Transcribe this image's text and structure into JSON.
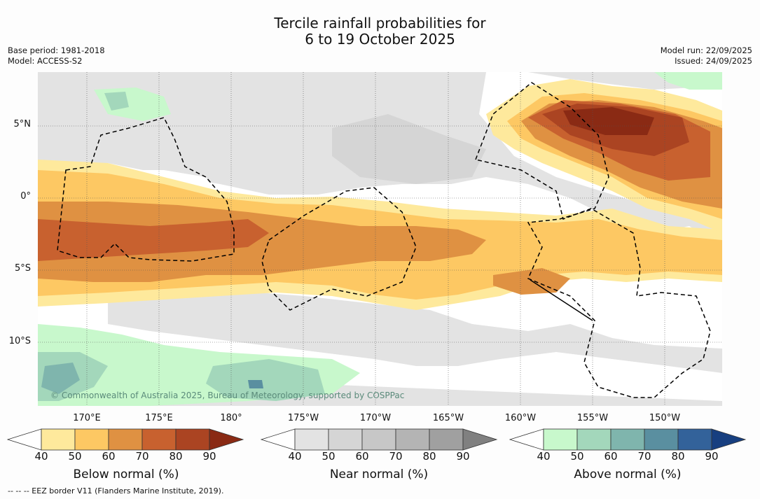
{
  "title": {
    "line1": "Tercile rainfall probabilities for",
    "line2": "6 to 19 October 2025"
  },
  "meta_left": {
    "base_period": "Base period: 1981-2018",
    "model": "Model: ACCESS-S2"
  },
  "meta_right": {
    "model_run": "Model run: 22/09/2025",
    "issued": "Issued: 24/09/2025"
  },
  "latitude_labels": [
    "5°N",
    "0°",
    "5°S",
    "10°S"
  ],
  "longitude_labels": [
    "170°E",
    "175°E",
    "180°",
    "175°W",
    "170°W",
    "165°W",
    "160°W",
    "155°W",
    "150°W"
  ],
  "copyright": "© Commonwealth of Australia 2025, Bureau of Meteorology, supported by COSPPac",
  "colorbars": [
    {
      "title": "Below normal (%)",
      "ticks": [
        "40",
        "50",
        "60",
        "70",
        "80",
        "90"
      ],
      "colors": [
        "#ffffff",
        "#fee99c",
        "#fdc863",
        "#df9142",
        "#c8612f",
        "#ab4422",
        "#8a2a14"
      ]
    },
    {
      "title": "Near normal (%)",
      "ticks": [
        "40",
        "50",
        "60",
        "70",
        "80",
        "90"
      ],
      "colors": [
        "#ffffff",
        "#e3e3e3",
        "#d5d5d5",
        "#c7c7c7",
        "#b4b4b4",
        "#a0a0a0",
        "#808080"
      ]
    },
    {
      "title": "Above normal (%)",
      "ticks": [
        "40",
        "50",
        "60",
        "70",
        "80",
        "90"
      ],
      "colors": [
        "#ffffff",
        "#c8f8cc",
        "#a3d7bb",
        "#7fb5ad",
        "#5a8fa0",
        "#33629a",
        "#173f80"
      ]
    }
  ],
  "footnote": "--  --  -- EEZ border V11 (Flanders Marine Institute, 2019)."
}
